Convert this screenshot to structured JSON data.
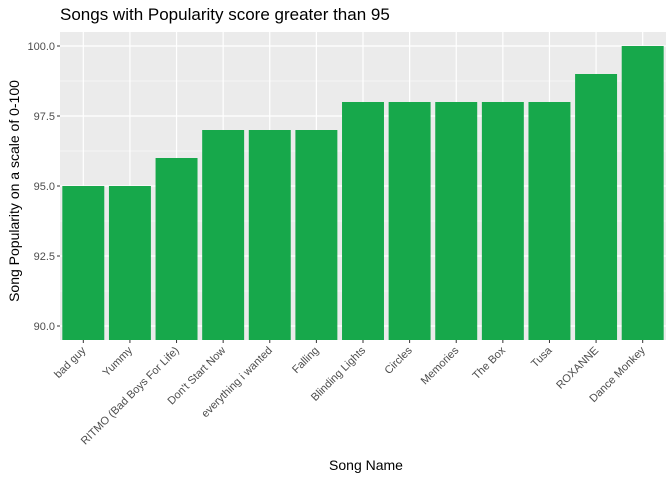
{
  "chart_data": {
    "type": "bar",
    "title": "Songs with Popularity score greater than 95",
    "xlabel": "Song Name",
    "ylabel": "Song Popularity on a scale of 0-100",
    "categories": [
      "bad guy",
      "Yummy",
      "RITMO (Bad Boys For Life)",
      "Don't Start Now",
      "everything i wanted",
      "Falling",
      "Blinding Lights",
      "Circles",
      "Memories",
      "The Box",
      "Tusa",
      "ROXANNE",
      "Dance Monkey"
    ],
    "values": [
      95,
      95,
      96,
      97,
      97,
      97,
      98,
      98,
      98,
      98,
      98,
      99,
      100
    ],
    "ylim": [
      89.5,
      100.5
    ],
    "yticks": [
      90,
      92.5,
      95,
      97.5,
      100
    ],
    "ytick_labels": [
      "90.0",
      "92.5",
      "95.0",
      "97.5",
      "100.0"
    ],
    "grid": true,
    "colors": {
      "bar": "#17a84b",
      "panel": "#ebebeb",
      "grid": "#ffffff"
    }
  }
}
